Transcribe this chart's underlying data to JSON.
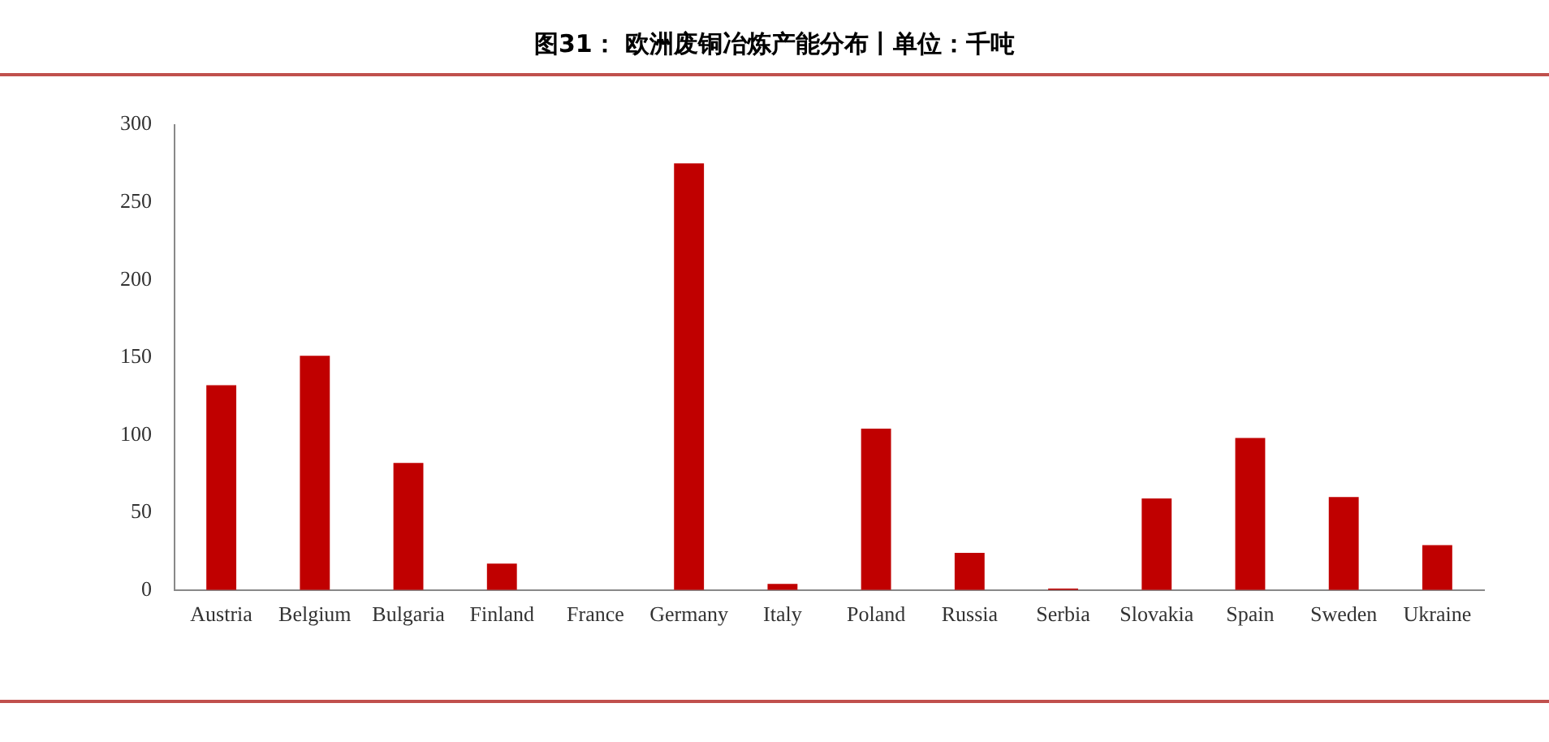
{
  "chart_data": {
    "type": "bar",
    "title": "图31： 欧洲废铜冶炼产能分布丨单位：千吨",
    "categories": [
      "Austria",
      "Belgium",
      "Bulgaria",
      "Finland",
      "France",
      "Germany",
      "Italy",
      "Poland",
      "Russia",
      "Serbia",
      "Slovakia",
      "Spain",
      "Sweden",
      "Ukraine"
    ],
    "values": [
      132,
      151,
      82,
      17,
      0,
      275,
      4,
      104,
      24,
      1,
      59,
      98,
      60,
      29
    ],
    "color": "#c00000",
    "ylim": [
      0,
      300
    ],
    "yticks": [
      0,
      50,
      100,
      150,
      200,
      250,
      300
    ],
    "grid": false,
    "legend": false
  }
}
